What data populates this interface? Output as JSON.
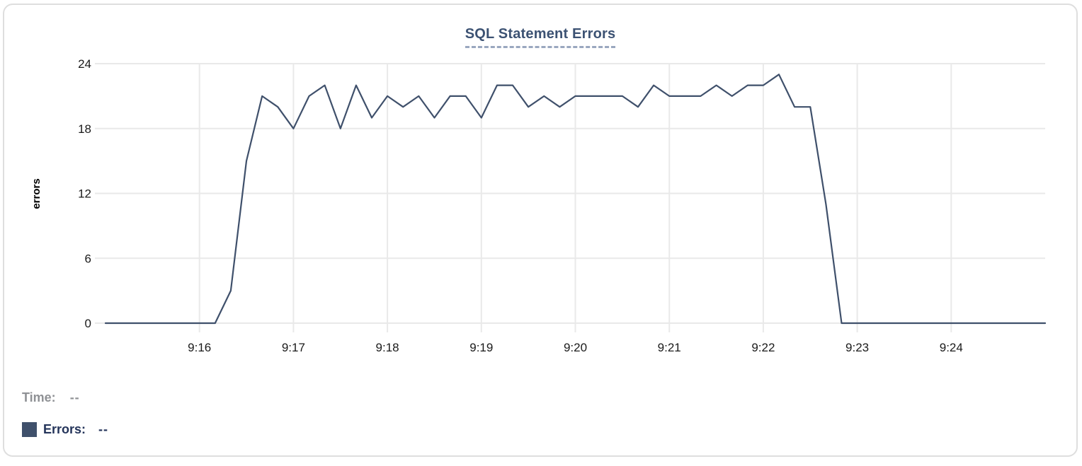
{
  "chart_data": {
    "type": "line",
    "title": "SQL Statement Errors",
    "xlabel": "",
    "ylabel": "errors",
    "x_start": "9:15:00",
    "x_end": "9:25:00",
    "sample_interval_seconds": 10,
    "x_tick_labels": [
      "9:16",
      "9:17",
      "9:18",
      "9:19",
      "9:20",
      "9:21",
      "9:22",
      "9:23",
      "9:24"
    ],
    "y_ticks": [
      0,
      6,
      12,
      18,
      24
    ],
    "ylim": [
      0,
      24
    ],
    "grid": true,
    "legend_position": "bottom-left",
    "series": [
      {
        "name": "Errors",
        "color": "#3f506b",
        "values": [
          0,
          0,
          0,
          0,
          0,
          0,
          0,
          0,
          3,
          15,
          21,
          20,
          18,
          21,
          22,
          18,
          22,
          19,
          21,
          20,
          21,
          19,
          21,
          21,
          19,
          22,
          22,
          20,
          21,
          20,
          21,
          21,
          21,
          21,
          20,
          22,
          21,
          21,
          21,
          22,
          21,
          22,
          22,
          23,
          20,
          20,
          11,
          0,
          0,
          0,
          0,
          0,
          0,
          0,
          0,
          0,
          0,
          0,
          0,
          0,
          0
        ]
      }
    ]
  },
  "readout": {
    "time_label": "Time:",
    "time_value": "--",
    "errors_label": "Errors:",
    "errors_value": "--",
    "swatch_color": "#3f506b"
  },
  "colors": {
    "title": "#3c5273",
    "title_underline": "#9aa7bf",
    "line": "#3f506b",
    "gridline": "#e9e9e9",
    "tick_label": "#1a1a1a",
    "axis_label": "#000000",
    "time_readout": "#8f9195",
    "errors_readout": "#24345a",
    "card_border": "#dedede"
  }
}
